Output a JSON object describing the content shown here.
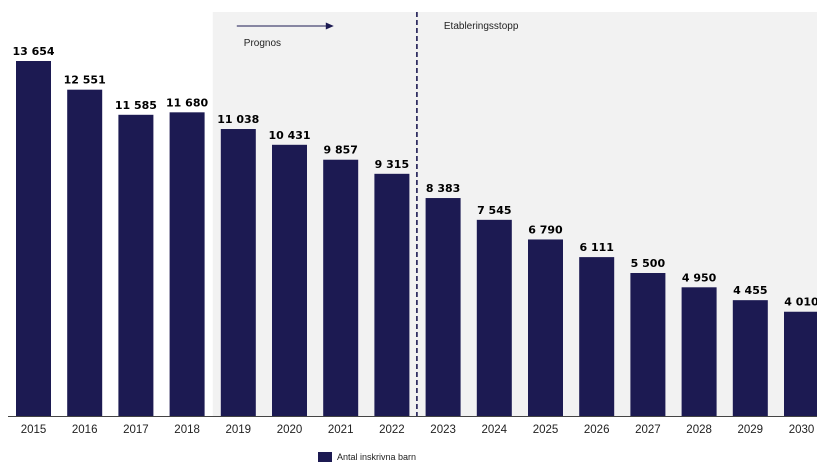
{
  "chart_data": {
    "type": "bar",
    "categories": [
      "2015",
      "2016",
      "2017",
      "2018",
      "2019",
      "2020",
      "2021",
      "2022",
      "2023",
      "2024",
      "2025",
      "2026",
      "2027",
      "2028",
      "2029",
      "2030"
    ],
    "series": [
      {
        "name": "Antal inskrivna barn",
        "values": [
          13654,
          12551,
          11585,
          11680,
          11038,
          10431,
          9857,
          9315,
          8383,
          7545,
          6790,
          6111,
          5500,
          4950,
          4455,
          4010
        ],
        "labels": [
          "13 654",
          "12 551",
          "11 585",
          "11 680",
          "11 038",
          "10 431",
          "9 857",
          "9 315",
          "8 383",
          "7 545",
          "6 790",
          "6 111",
          "5 500",
          "4 950",
          "4 455",
          "4 010"
        ]
      }
    ],
    "ylim": [
      0,
      15000
    ],
    "grid": false,
    "legend_position": "bottom-center",
    "bar_color": "#1c1a52",
    "annotations": {
      "prognos": {
        "text": "Prognos",
        "from_category": "2019",
        "shaded": true,
        "shade_color": "#f2f2f2",
        "arrow": true
      },
      "etableringsstopp": {
        "text": "Etableringsstopp",
        "between": [
          "2022",
          "2023"
        ],
        "line_style": "dashed",
        "line_color": "#1c1a52"
      }
    }
  }
}
